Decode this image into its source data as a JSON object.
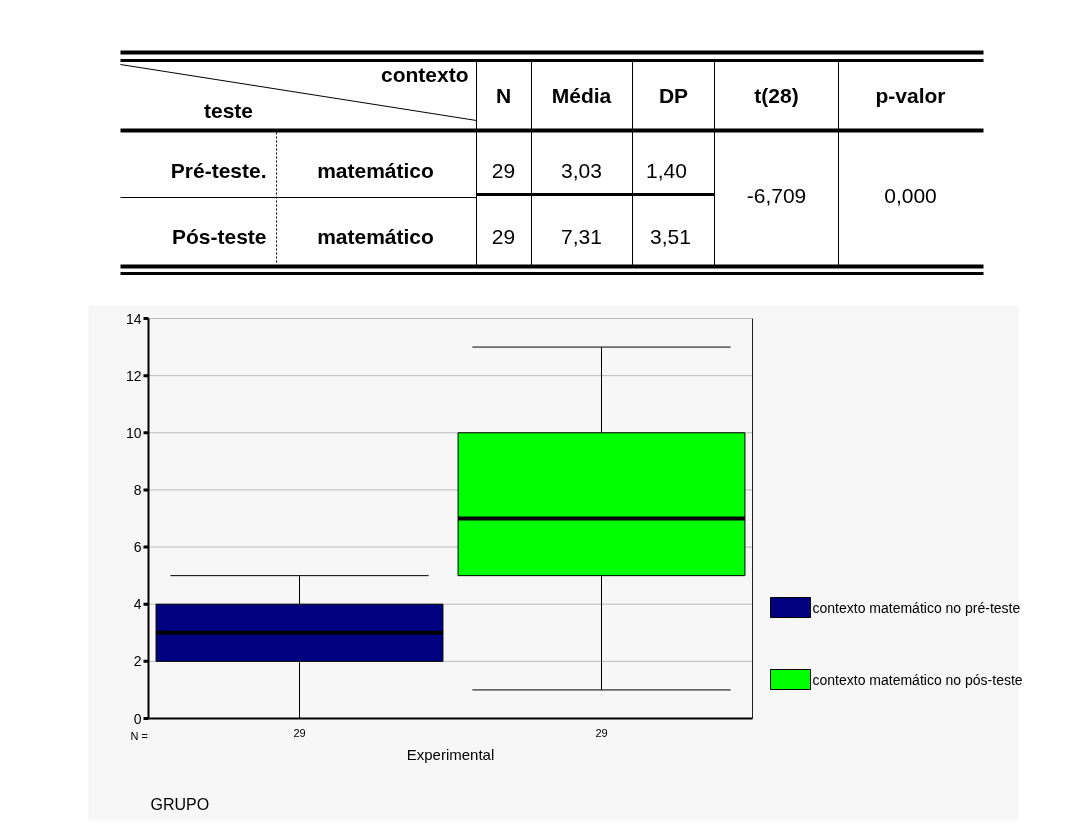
{
  "chart_data": {
    "type": "box",
    "xlabel": "GRUPO",
    "categories": [
      "Experimental"
    ],
    "series": [
      {
        "name": "contexto matemático no pré-teste",
        "color": "#000080",
        "boxes": [
          {
            "low": 0,
            "q1": 2,
            "median": 3,
            "q3": 4,
            "high": 5
          }
        ]
      },
      {
        "name": "contexto matemático no pós-teste",
        "color": "#00ff00",
        "boxes": [
          {
            "low": 1,
            "q1": 5,
            "median": 7,
            "q3": 10,
            "high": 13
          }
        ]
      }
    ],
    "ylim": [
      0,
      14
    ],
    "yticks": [
      0,
      2,
      4,
      6,
      8,
      10,
      12,
      14
    ],
    "grid": "y",
    "legend": "right",
    "annotations": [
      "contexto",
      "teste",
      "N",
      "Média",
      "DP",
      "t(28)",
      "p-valor",
      "Pré-teste.",
      "matemático",
      "29",
      "3,03",
      "1,40",
      "-6,709",
      "0,000",
      "Pós-teste",
      "matemático",
      "29",
      "7,31",
      "3,51",
      "N =",
      "29",
      "29"
    ]
  }
}
